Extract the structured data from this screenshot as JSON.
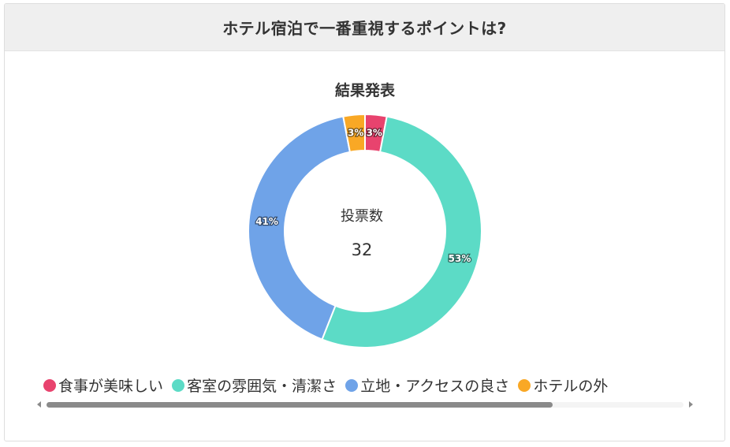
{
  "header": {
    "title": "ホテル宿泊で一番重視するポイントは?"
  },
  "chart_data": {
    "type": "pie",
    "title": "結果発表",
    "center_label": "投票数",
    "center_value": "32",
    "categories": [
      "食事が美味しい",
      "客室の雰囲気・清潔さ",
      "立地・アクセスの良さ",
      "ホテルの外観"
    ],
    "values": [
      3,
      53,
      41,
      3
    ],
    "value_labels": [
      "3%",
      "53%",
      "41%",
      "3%"
    ],
    "colors": [
      "#e8436e",
      "#5cdbc6",
      "#6fa3e8",
      "#f9a825"
    ],
    "legend_position": "bottom"
  },
  "legend": {
    "visible_labels": [
      "食事が美味しい",
      "客室の雰囲気・清潔さ",
      "立地・アクセスの良さ",
      "ホテルの外"
    ]
  },
  "icons": {
    "scroll_left": "chevron-left-icon",
    "scroll_right": "chevron-right-icon"
  }
}
